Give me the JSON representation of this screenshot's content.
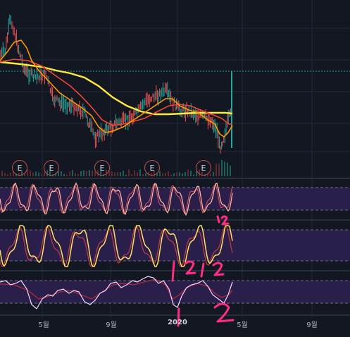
{
  "x_axis": {
    "labels": [
      "5월",
      "9월",
      "2020",
      "5월",
      "9월"
    ]
  },
  "earnings_markers": [
    "E",
    "E",
    "E",
    "E",
    "E"
  ],
  "annotations": {
    "handwritten_marks": [
      "12",
      "1",
      "2",
      "1",
      "2",
      "1",
      "2"
    ]
  },
  "colors": {
    "background": "#131722",
    "grid": "#242938",
    "price_up": "#26a69a",
    "price_down": "#ef5350",
    "ma_fast": "#ff9800",
    "ma_mid": "#f44336",
    "ma_slow": "#ffeb3b",
    "oscillator_band": "#2a1f4a",
    "osc_line_1": "#ffb3a7",
    "osc_line_2": "#ffe066",
    "osc_line_3": "#f6d7ff",
    "annotation": "#ff2d86",
    "price_level_line": "#26a69a"
  }
}
